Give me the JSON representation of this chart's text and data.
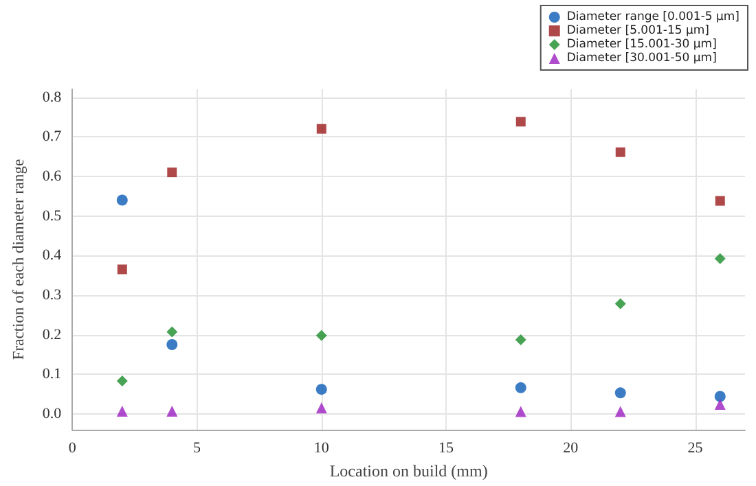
{
  "chart_data": {
    "type": "scatter",
    "xlabel": "Location on build (mm)",
    "ylabel": "Fraction of each diameter range",
    "x": [
      2,
      4,
      10,
      18,
      22,
      26
    ],
    "xlim": [
      0,
      27
    ],
    "xticks": [
      0,
      5,
      10,
      15,
      20,
      25
    ],
    "ylim": [
      -0.04,
      0.82
    ],
    "yticks": [
      {
        "value": 0,
        "label": "0.0"
      },
      0.1,
      0.2,
      0.3,
      0.4,
      0.5,
      0.6,
      0.7,
      0.8
    ],
    "grid": true,
    "legend": "top right",
    "series": [
      {
        "name": "Diameter range [0.001-5 µm]",
        "color": "#0b5bb5",
        "marker": "circle",
        "values": [
          0.54,
          0.175,
          0.062,
          0.066,
          0.053,
          0.044
        ]
      },
      {
        "name": "Diameter [5.001-15 µm]",
        "color": "#9b1b1b",
        "marker": "square",
        "values": [
          0.365,
          0.61,
          0.72,
          0.738,
          0.661,
          0.538
        ]
      },
      {
        "name": "Diameter [15.001-30 µm]",
        "color": "#1a8c2a",
        "marker": "diamond",
        "values": [
          0.083,
          0.207,
          0.198,
          0.187,
          0.278,
          0.392
        ]
      },
      {
        "name": "Diameter [30.001-50 µm]",
        "color": "#9b1fc0",
        "marker": "triangle",
        "values": [
          0.007,
          0.007,
          0.015,
          0.006,
          0.006,
          0.024
        ]
      }
    ]
  }
}
